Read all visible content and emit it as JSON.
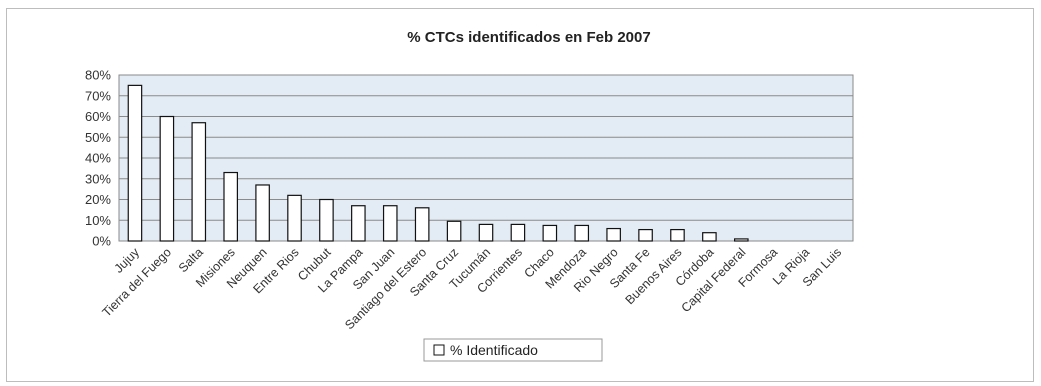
{
  "chart_data": {
    "type": "bar",
    "title": "% CTCs identificados en Feb 2007",
    "xlabel": "",
    "ylabel": "",
    "ylim": [
      0,
      0.8
    ],
    "yticks": [
      "0%",
      "10%",
      "20%",
      "30%",
      "40%",
      "50%",
      "60%",
      "70%",
      "80%"
    ],
    "grid": true,
    "legend_position": "bottom",
    "categories": [
      "Jujuy",
      "Tierra del Fuego",
      "Salta",
      "Misiones",
      "Neuquen",
      "Entre Rios",
      "Chubut",
      "La Pampa",
      "San Juan",
      "Santiago del Estero",
      "Santa Cruz",
      "Tucumán",
      "Corrientes",
      "Chaco",
      "Mendoza",
      "Rio Negro",
      "Santa Fe",
      "Buenos Aires",
      "Córdoba",
      "Capital Federal",
      "Formosa",
      "La Rioja",
      "San Luis"
    ],
    "series": [
      {
        "name": "% Identificado",
        "values": [
          0.75,
          0.6,
          0.57,
          0.33,
          0.27,
          0.22,
          0.2,
          0.17,
          0.17,
          0.16,
          0.095,
          0.08,
          0.08,
          0.075,
          0.075,
          0.06,
          0.055,
          0.055,
          0.04,
          0.01,
          0.0,
          0.0,
          0.0
        ]
      }
    ],
    "colors": {
      "plot_background": "#e3ecf5",
      "bar_fill": "#ffffff",
      "bar_stroke": "#111111",
      "grid": "#8a8a8a"
    }
  }
}
